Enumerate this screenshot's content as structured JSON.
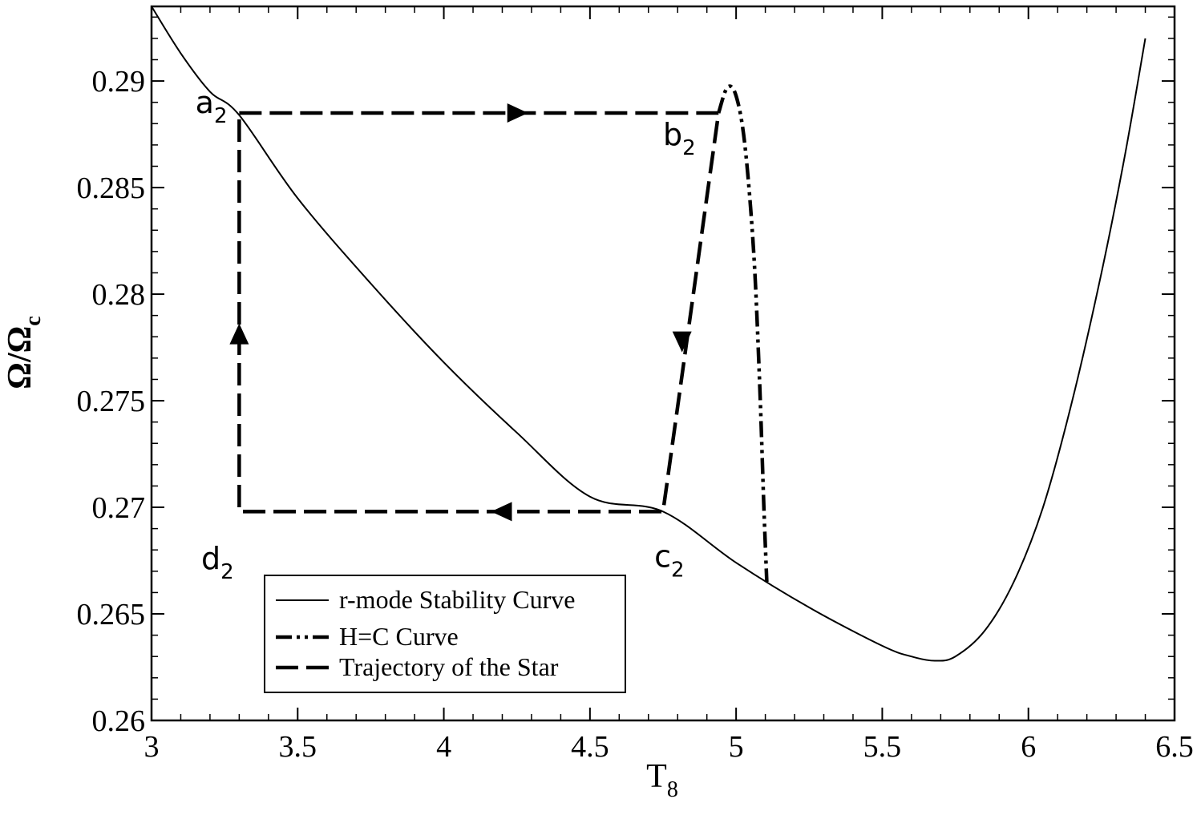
{
  "chart_data": {
    "type": "line",
    "xlabel": "T",
    "xlabel_sub": "8",
    "ylabel": "Ω/Ω",
    "ylabel_sub": "c",
    "xlim": [
      3,
      6.5
    ],
    "ylim": [
      0.26,
      0.2935
    ],
    "x_ticks": [
      "3",
      "3.5",
      "4",
      "4.5",
      "5",
      "5.5",
      "6",
      "6.5"
    ],
    "y_ticks": [
      "0.26",
      "0.265",
      "0.27",
      "0.275",
      "0.28",
      "0.285",
      "0.29"
    ],
    "grid": false,
    "legend_position": "bottom-center",
    "series": [
      {
        "name": "r-mode Stability Curve",
        "style": "solid",
        "points": [
          [
            3.0,
            0.2935
          ],
          [
            3.1,
            0.2913
          ],
          [
            3.2,
            0.2895
          ],
          [
            3.3,
            0.2884
          ],
          [
            3.5,
            0.2845
          ],
          [
            3.75,
            0.2805
          ],
          [
            4.0,
            0.2768
          ],
          [
            4.25,
            0.2735
          ],
          [
            4.5,
            0.2705
          ],
          [
            4.75,
            0.2698
          ],
          [
            5.0,
            0.2674
          ],
          [
            5.25,
            0.2653
          ],
          [
            5.5,
            0.2635
          ],
          [
            5.6,
            0.263
          ],
          [
            5.68,
            0.2628
          ],
          [
            5.75,
            0.263
          ],
          [
            5.85,
            0.2642
          ],
          [
            5.95,
            0.2665
          ],
          [
            6.05,
            0.27
          ],
          [
            6.15,
            0.275
          ],
          [
            6.25,
            0.281
          ],
          [
            6.33,
            0.2865
          ],
          [
            6.4,
            0.292
          ]
        ]
      },
      {
        "name": "H=C Curve",
        "style": "dash-dot-dot",
        "points": [
          [
            4.94,
            0.2885
          ],
          [
            4.97,
            0.2897
          ],
          [
            5.0,
            0.2893
          ],
          [
            5.03,
            0.287
          ],
          [
            5.06,
            0.282
          ],
          [
            5.08,
            0.276
          ],
          [
            5.095,
            0.27
          ],
          [
            5.105,
            0.2665
          ]
        ]
      },
      {
        "name": "Trajectory of the Star",
        "style": "long-dash",
        "points": [
          [
            3.3,
            0.2885
          ],
          [
            4.94,
            0.2885
          ],
          [
            4.75,
            0.2698
          ],
          [
            3.3,
            0.2698
          ],
          [
            3.3,
            0.2885
          ]
        ]
      }
    ],
    "arrows": [
      {
        "x": 4.25,
        "y": 0.2885,
        "direction": "right"
      },
      {
        "x": 4.815,
        "y": 0.2778,
        "direction": "down"
      },
      {
        "x": 4.2,
        "y": 0.2698,
        "direction": "left"
      },
      {
        "x": 3.3,
        "y": 0.2781,
        "direction": "up"
      }
    ],
    "annotations": [
      {
        "text": "a",
        "sub": "2",
        "x": 3.15,
        "y": 0.2885
      },
      {
        "text": "b",
        "sub": "2",
        "x": 4.75,
        "y": 0.287
      },
      {
        "text": "c",
        "sub": "2",
        "x": 4.72,
        "y": 0.2672
      },
      {
        "text": "d",
        "sub": "2",
        "x": 3.17,
        "y": 0.2671
      }
    ]
  }
}
